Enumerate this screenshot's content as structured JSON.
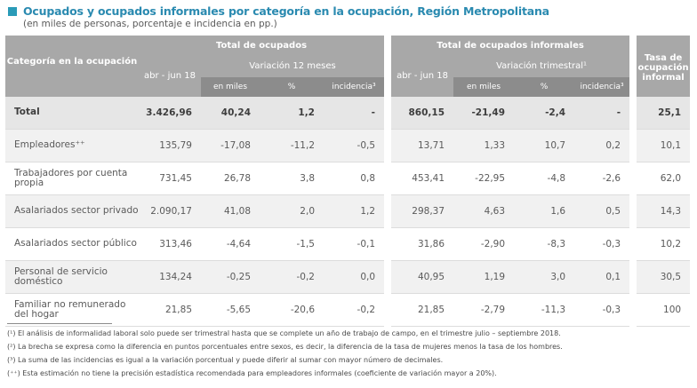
{
  "title": "Ocupados y ocupados informales por categoría en la ocupación, Región Metropolitana",
  "subtitle": "(en miles de personas, porcentaje e incidencia en pp.)",
  "header": {
    "categoria": "Categoría en la ocupación",
    "total_ocupados": "Total de ocupados",
    "total_informales": "Total de ocupados informales",
    "tasa": "Tasa de ocupación informal",
    "periodo": "abr - jun 18",
    "variacion12": "Variación 12 meses",
    "variacion_trim": "Variación trimestral¹",
    "en_miles": "en miles",
    "pct": "%",
    "incidencia": "incidencia³"
  },
  "rows": [
    {
      "cat": "Total",
      "v": [
        "3.426,96",
        "40,24",
        "1,2",
        "-",
        "860,15",
        "-21,49",
        "-2,4",
        "-",
        "25,1"
      ]
    },
    {
      "cat": "Empleadores⁺⁺",
      "v": [
        "135,79",
        "-17,08",
        "-11,2",
        "-0,5",
        "13,71",
        "1,33",
        "10,7",
        "0,2",
        "10,1"
      ]
    },
    {
      "cat": "Trabajadores por cuenta propia",
      "v": [
        "731,45",
        "26,78",
        "3,8",
        "0,8",
        "453,41",
        "-22,95",
        "-4,8",
        "-2,6",
        "62,0"
      ]
    },
    {
      "cat": "Asalariados sector privado",
      "v": [
        "2.090,17",
        "41,08",
        "2,0",
        "1,2",
        "298,37",
        "4,63",
        "1,6",
        "0,5",
        "14,3"
      ]
    },
    {
      "cat": "Asalariados sector público",
      "v": [
        "313,46",
        "-4,64",
        "-1,5",
        "-0,1",
        "31,86",
        "-2,90",
        "-8,3",
        "-0,3",
        "10,2"
      ]
    },
    {
      "cat": "Personal de servicio doméstico",
      "v": [
        "134,24",
        "-0,25",
        "-0,2",
        "0,0",
        "40,95",
        "1,19",
        "3,0",
        "0,1",
        "30,5"
      ]
    },
    {
      "cat": "Familiar no remunerado del hogar",
      "v": [
        "21,85",
        "-5,65",
        "-20,6",
        "-0,2",
        "21,85",
        "-2,79",
        "-11,3",
        "-0,3",
        "100"
      ]
    }
  ],
  "notes": [
    "(¹) El análisis de informalidad laboral solo puede ser trimestral hasta que se complete un año de trabajo de campo, en el trimestre julio – septiembre 2018.",
    "(²) La brecha se expresa como la diferencia en puntos porcentuales entre sexos, es decir, la diferencia de la tasa de mujeres menos la tasa de los hombres.",
    "(³) La suma de las incidencias es igual a la variación porcentual y puede diferir al sumar con mayor número de decimales.",
    "(⁺⁺) Esta estimación no tiene la precisión estadística recomendada para empleadores informales (coeficiente de variación mayor a 20%)."
  ]
}
